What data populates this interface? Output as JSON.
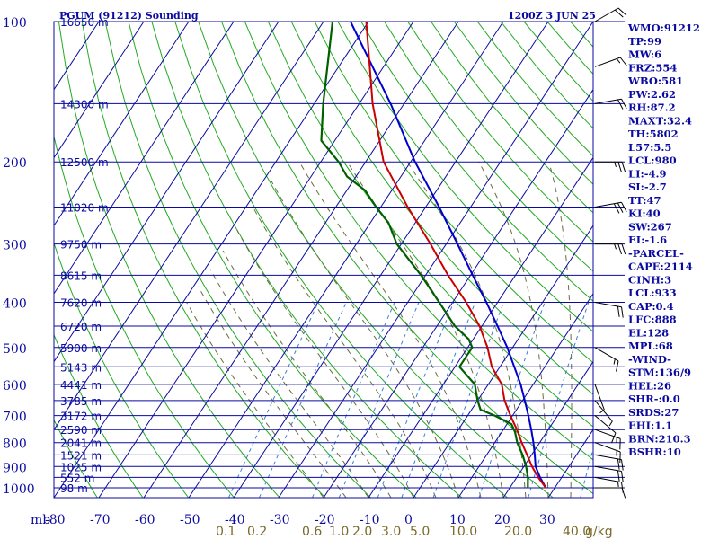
{
  "title_left": "PGUM (91212) Sounding",
  "title_right": "1200Z  3 JUN 25",
  "colors": {
    "grid": "#0a0aa0",
    "dry_adiabat": "#22aa22",
    "moist_adiabat": "#6b6b40",
    "mixing_ratio": "#3a7fd0",
    "temperature": "#cc0000",
    "dewpoint": "#006000",
    "parcel": "#0000cc",
    "wind_barb": "#000000"
  },
  "chart_data": {
    "type": "skew-t",
    "xlabel": "mb",
    "temp_ticks": [
      "-80",
      "-70",
      "-60",
      "-50",
      "-40",
      "-30",
      "-20",
      "-10",
      "0",
      "10",
      "20",
      "30"
    ],
    "pressure_ticks": [
      "100",
      "200",
      "300",
      "400",
      "500",
      "600",
      "700",
      "800",
      "900",
      "1000"
    ],
    "pressure_levels": [
      100,
      200,
      300,
      400,
      500,
      600,
      700,
      800,
      900,
      1000
    ],
    "mixing_ratio_labels": [
      "0.1",
      "0.2",
      "0.6",
      "1.0",
      "2.0",
      "3.0",
      "5.0",
      "10.0",
      "20.0",
      "40.0",
      "g/kg"
    ],
    "height_labels": [
      {
        "p": 100,
        "label": "16650 m"
      },
      {
        "p": 150,
        "label": "14300 m"
      },
      {
        "p": 200,
        "label": "12500 m"
      },
      {
        "p": 250,
        "label": "11020 m"
      },
      {
        "p": 300,
        "label": "9750 m"
      },
      {
        "p": 350,
        "label": "8615 m"
      },
      {
        "p": 400,
        "label": "7620 m"
      },
      {
        "p": 450,
        "label": "6720 m"
      },
      {
        "p": 500,
        "label": "5900 m"
      },
      {
        "p": 550,
        "label": "5143 m"
      },
      {
        "p": 600,
        "label": "4441 m"
      },
      {
        "p": 650,
        "label": "3785 m"
      },
      {
        "p": 700,
        "label": "3172 m"
      },
      {
        "p": 750,
        "label": "2590 m"
      },
      {
        "p": 800,
        "label": "2041 m"
      },
      {
        "p": 850,
        "label": "1521 m"
      },
      {
        "p": 900,
        "label": "1025 m"
      },
      {
        "p": 950,
        "label": "552 m"
      },
      {
        "p": 1000,
        "label": "98 m"
      }
    ],
    "temperature": [
      {
        "p": 100,
        "t": -80.5
      },
      {
        "p": 150,
        "t": -67
      },
      {
        "p": 200,
        "t": -56
      },
      {
        "p": 250,
        "t": -44
      },
      {
        "p": 300,
        "t": -33.5
      },
      {
        "p": 350,
        "t": -25
      },
      {
        "p": 400,
        "t": -17
      },
      {
        "p": 450,
        "t": -10.5
      },
      {
        "p": 500,
        "t": -5.6
      },
      {
        "p": 550,
        "t": -1.8
      },
      {
        "p": 600,
        "t": 3.0
      },
      {
        "p": 650,
        "t": 6.0
      },
      {
        "p": 700,
        "t": 9.5
      },
      {
        "p": 750,
        "t": 13.0
      },
      {
        "p": 800,
        "t": 16.0
      },
      {
        "p": 850,
        "t": 19.0
      },
      {
        "p": 900,
        "t": 21.8
      },
      {
        "p": 950,
        "t": 24.8
      },
      {
        "p": 1000,
        "t": 28.0
      }
    ],
    "dewpoint": [
      {
        "p": 100,
        "t": -88
      },
      {
        "p": 150,
        "t": -78
      },
      {
        "p": 180,
        "t": -73
      },
      {
        "p": 200,
        "t": -66
      },
      {
        "p": 215,
        "t": -62
      },
      {
        "p": 230,
        "t": -56
      },
      {
        "p": 250,
        "t": -51
      },
      {
        "p": 270,
        "t": -46
      },
      {
        "p": 300,
        "t": -41
      },
      {
        "p": 350,
        "t": -31
      },
      {
        "p": 400,
        "t": -23
      },
      {
        "p": 450,
        "t": -16
      },
      {
        "p": 480,
        "t": -11
      },
      {
        "p": 500,
        "t": -9
      },
      {
        "p": 550,
        "t": -9
      },
      {
        "p": 600,
        "t": -3
      },
      {
        "p": 650,
        "t": 0
      },
      {
        "p": 680,
        "t": 2
      },
      {
        "p": 700,
        "t": 6
      },
      {
        "p": 730,
        "t": 11
      },
      {
        "p": 760,
        "t": 13
      },
      {
        "p": 800,
        "t": 15
      },
      {
        "p": 850,
        "t": 18
      },
      {
        "p": 900,
        "t": 20.5
      },
      {
        "p": 950,
        "t": 22.5
      },
      {
        "p": 1000,
        "t": 24
      }
    ],
    "parcel": [
      {
        "p": 100,
        "t": -84
      },
      {
        "p": 150,
        "t": -63
      },
      {
        "p": 200,
        "t": -49
      },
      {
        "p": 250,
        "t": -37
      },
      {
        "p": 300,
        "t": -27.5
      },
      {
        "p": 350,
        "t": -19.5
      },
      {
        "p": 400,
        "t": -12.5
      },
      {
        "p": 450,
        "t": -6.5
      },
      {
        "p": 500,
        "t": -1.2
      },
      {
        "p": 550,
        "t": 3.2
      },
      {
        "p": 600,
        "t": 7.2
      },
      {
        "p": 650,
        "t": 10.5
      },
      {
        "p": 700,
        "t": 13.5
      },
      {
        "p": 750,
        "t": 16.2
      },
      {
        "p": 800,
        "t": 18.6
      },
      {
        "p": 850,
        "t": 20.7
      },
      {
        "p": 900,
        "t": 22.6
      },
      {
        "p": 950,
        "t": 25.2
      },
      {
        "p": 1000,
        "t": 28.0
      }
    ],
    "winds": [
      {
        "p": 1000,
        "dir": 90,
        "spd": 10
      },
      {
        "p": 950,
        "dir": 100,
        "spd": 15
      },
      {
        "p": 900,
        "dir": 100,
        "spd": 20
      },
      {
        "p": 850,
        "dir": 100,
        "spd": 20
      },
      {
        "p": 800,
        "dir": 110,
        "spd": 15
      },
      {
        "p": 750,
        "dir": 110,
        "spd": 15
      },
      {
        "p": 700,
        "dir": 130,
        "spd": 10
      },
      {
        "p": 650,
        "dir": 140,
        "spd": 5
      },
      {
        "p": 600,
        "dir": 160,
        "spd": 5
      },
      {
        "p": 500,
        "dir": 120,
        "spd": 15
      },
      {
        "p": 400,
        "dir": 100,
        "spd": 20
      },
      {
        "p": 300,
        "dir": 90,
        "spd": 25
      },
      {
        "p": 250,
        "dir": 80,
        "spd": 30
      },
      {
        "p": 200,
        "dir": 90,
        "spd": 25
      },
      {
        "p": 150,
        "dir": 80,
        "spd": 20
      },
      {
        "p": 125,
        "dir": 70,
        "spd": 15
      },
      {
        "p": 100,
        "dir": 60,
        "spd": 20
      }
    ]
  },
  "indices": [
    "WMO:91212",
    "TP:99",
    "MW:6",
    "FRZ:554",
    "WBO:581",
    "PW:2.62",
    "RH:87.2",
    "MAXT:32.4",
    "TH:5802",
    "L57:5.5",
    "LCL:980",
    "LI:-4.9",
    "SI:-2.7",
    "TT:47",
    "KI:40",
    "SW:267",
    "EI:-1.6",
    "-PARCEL-",
    "CAPE:2114",
    "CINH:3",
    "LCL:933",
    "CAP:0.4",
    "LFC:888",
    "EL:128",
    "MPL:68",
    "-WIND-",
    "STM:136/9",
    "HEL:26",
    "SHR-:0.0",
    "SRDS:27",
    "EHI:1.1",
    "BRN:210.3",
    "BSHR:10"
  ]
}
